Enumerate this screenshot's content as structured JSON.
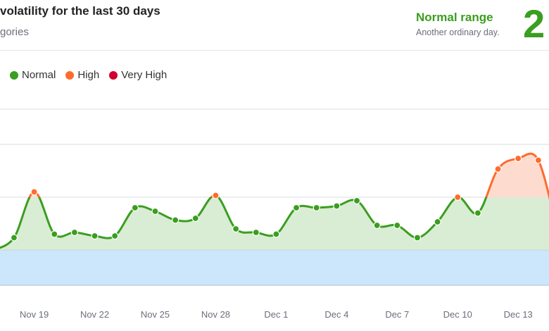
{
  "header": {
    "title": "volatility for the last 30 days",
    "subtitle": "gories",
    "status_label": "Normal range",
    "status_description": "Another ordinary day.",
    "score": "2"
  },
  "colors": {
    "normal": "#3a9e1f",
    "high": "#ff6b2b",
    "very_high": "#d1002c",
    "low_band": "#cce6fb",
    "normal_fill": "#d9ecd4",
    "high_fill": "#fddccf"
  },
  "chart_data": {
    "type": "line",
    "title": "",
    "xlabel": "",
    "ylabel": "",
    "ylim": [
      0,
      10
    ],
    "grid": true,
    "legend_position": "top-left",
    "legend": [
      "Normal",
      "High",
      "Very High"
    ],
    "zones": {
      "low": [
        0,
        2
      ],
      "normal": [
        2,
        5
      ],
      "high": [
        5,
        8
      ],
      "very_high": [
        8,
        10
      ]
    },
    "gridlines": [
      0,
      2,
      5,
      8,
      10
    ],
    "x_tick_labels": [
      "Nov 19",
      "Nov 22",
      "Nov 25",
      "Nov 28",
      "Dec 1",
      "Dec 4",
      "Dec 7",
      "Dec 10",
      "Dec 13"
    ],
    "x": [
      "Nov 17",
      "Nov 18",
      "Nov 19",
      "Nov 20",
      "Nov 21",
      "Nov 22",
      "Nov 23",
      "Nov 24",
      "Nov 25",
      "Nov 26",
      "Nov 27",
      "Nov 28",
      "Nov 29",
      "Nov 30",
      "Dec 1",
      "Dec 2",
      "Dec 3",
      "Dec 4",
      "Dec 5",
      "Dec 6",
      "Dec 7",
      "Dec 8",
      "Dec 9",
      "Dec 10",
      "Dec 11",
      "Dec 12",
      "Dec 13",
      "Dec 14",
      "Dec 15"
    ],
    "values": [
      2.0,
      2.7,
      5.3,
      2.9,
      3.0,
      2.8,
      2.8,
      4.4,
      4.2,
      3.7,
      3.8,
      5.1,
      3.2,
      3.0,
      2.9,
      4.4,
      4.4,
      4.5,
      4.8,
      3.4,
      3.4,
      2.7,
      3.6,
      5.0,
      4.1,
      6.6,
      7.2,
      7.1,
      2.8
    ]
  }
}
